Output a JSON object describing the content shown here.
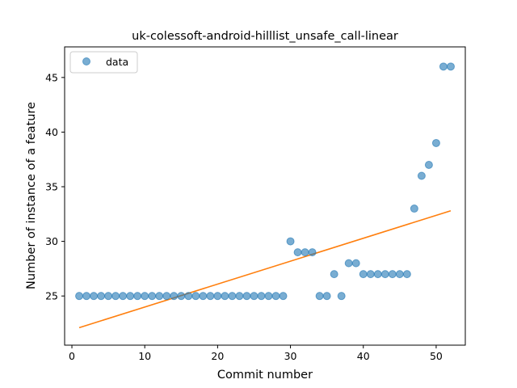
{
  "chart_data": {
    "type": "scatter",
    "title": "uk-colessoft-android-hilllist_unsafe_call-linear",
    "xlabel": "Commit number",
    "ylabel": "Number of instance of a feature",
    "xlim": [
      -1,
      54
    ],
    "ylim": [
      20.5,
      47.8
    ],
    "xticks": [
      0,
      10,
      20,
      30,
      40,
      50
    ],
    "yticks": [
      25,
      30,
      35,
      40,
      45
    ],
    "grid": false,
    "legend": {
      "placement": "top-left",
      "entries": [
        "data"
      ]
    },
    "series": [
      {
        "name": "data",
        "kind": "scatter",
        "color": "#1f77b4",
        "x": [
          1,
          2,
          3,
          4,
          5,
          6,
          7,
          8,
          9,
          10,
          11,
          12,
          13,
          14,
          15,
          16,
          17,
          18,
          19,
          20,
          21,
          22,
          23,
          24,
          25,
          26,
          27,
          28,
          29,
          30,
          31,
          32,
          33,
          34,
          35,
          36,
          37,
          38,
          39,
          40,
          41,
          42,
          43,
          44,
          45,
          46,
          47,
          48,
          49,
          50,
          51,
          52
        ],
        "y": [
          25,
          25,
          25,
          25,
          25,
          25,
          25,
          25,
          25,
          25,
          25,
          25,
          25,
          25,
          25,
          25,
          25,
          25,
          25,
          25,
          25,
          25,
          25,
          25,
          25,
          25,
          25,
          25,
          25,
          30,
          29,
          29,
          29,
          25,
          25,
          27,
          25,
          28,
          28,
          27,
          27,
          27,
          27,
          27,
          27,
          27,
          33,
          36,
          37,
          39,
          46,
          46
        ]
      },
      {
        "kind": "line",
        "color": "#ff7f0e",
        "x": [
          1,
          52
        ],
        "y": [
          22.1,
          32.8
        ]
      }
    ]
  }
}
